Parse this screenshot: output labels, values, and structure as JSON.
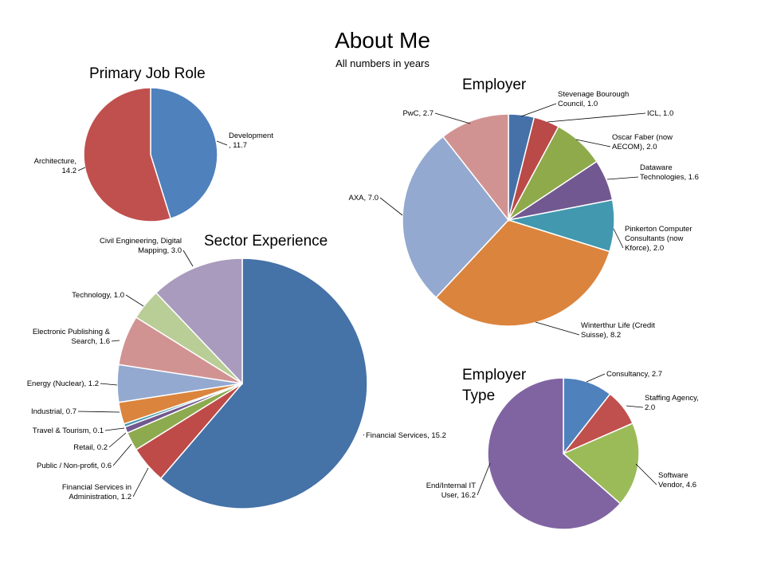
{
  "page": {
    "title": "About Me",
    "subtitle": "All numbers in years"
  },
  "chart_data": [
    {
      "type": "pie",
      "title": "Primary Job Role",
      "series": [
        {
          "label": "Development",
          "value": 11.7,
          "color": "#4F81BD",
          "label_lines": [
            "Development",
            ", 11.7"
          ]
        },
        {
          "label": "Architecture",
          "value": 14.2,
          "color": "#C0504D",
          "label_lines": [
            "Architecture,",
            "14.2"
          ]
        }
      ]
    },
    {
      "type": "pie",
      "title": "Employer",
      "series": [
        {
          "label": "Stevenage Bourough Council",
          "value": 1.0,
          "color": "#4670A8",
          "label_lines": [
            "Stevenage Bourough",
            "Council, 1.0"
          ]
        },
        {
          "label": "ICL",
          "value": 1.0,
          "color": "#B94A48",
          "label_lines": [
            "ICL, 1.0"
          ]
        },
        {
          "label": "Oscar Faber (now AECOM)",
          "value": 2.0,
          "color": "#8FAA4B",
          "label_lines": [
            "Oscar Faber (now",
            "AECOM), 2.0"
          ]
        },
        {
          "label": "Dataware Technologies",
          "value": 1.6,
          "color": "#725890",
          "label_lines": [
            "Dataware",
            "Technologies, 1.6"
          ]
        },
        {
          "label": "Pinkerton Computer Consultants (now Kforce)",
          "value": 2.0,
          "color": "#4198AF",
          "label_lines": [
            "Pinkerton Computer",
            "Consultants (now",
            "Kforce), 2.0"
          ]
        },
        {
          "label": "Winterthur Life (Credit Suisse)",
          "value": 8.2,
          "color": "#DB843D",
          "label_lines": [
            "Winterthur Life (Credit",
            "Suisse), 8.2"
          ]
        },
        {
          "label": "AXA",
          "value": 7.0,
          "color": "#93A9CF",
          "label_lines": [
            "AXA, 7.0"
          ]
        },
        {
          "label": "PwC",
          "value": 2.7,
          "color": "#D19392",
          "label_lines": [
            "PwC, 2.7"
          ]
        }
      ]
    },
    {
      "type": "pie",
      "title": "Sector Experience",
      "series": [
        {
          "label": "Financial Services",
          "value": 15.2,
          "color": "#4572A7",
          "label_lines": [
            "Financial Services, 15.2"
          ]
        },
        {
          "label": "Financial Services in Administration",
          "value": 1.2,
          "color": "#BE4B48",
          "label_lines": [
            "Financial Services in",
            "Administration, 1.2"
          ]
        },
        {
          "label": "Public / Non-profit",
          "value": 0.6,
          "color": "#8DAA4F",
          "label_lines": [
            "Public / Non-profit, 0.6"
          ]
        },
        {
          "label": "Retail",
          "value": 0.2,
          "color": "#71588F",
          "label_lines": [
            "Retail, 0.2"
          ]
        },
        {
          "label": "Travel & Tourism",
          "value": 0.1,
          "color": "#4198AF",
          "label_lines": [
            "Travel & Tourism, 0.1"
          ]
        },
        {
          "label": "Industrial",
          "value": 0.7,
          "color": "#DB843D",
          "label_lines": [
            "Industrial, 0.7"
          ]
        },
        {
          "label": "Energy (Nuclear)",
          "value": 1.2,
          "color": "#93A9CF",
          "label_lines": [
            "Energy (Nuclear), 1.2"
          ]
        },
        {
          "label": "Electronic Publishing & Search",
          "value": 1.6,
          "color": "#D19392",
          "label_lines": [
            "Electronic Publishing &",
            "Search, 1.6"
          ]
        },
        {
          "label": "Technology",
          "value": 1.0,
          "color": "#B9CD96",
          "label_lines": [
            "Technology, 1.0"
          ]
        },
        {
          "label": "Civil Engineering, Digital Mapping",
          "value": 3.0,
          "color": "#A99BBD",
          "label_lines": [
            "Civil Engineering, Digital",
            "Mapping, 3.0"
          ]
        }
      ]
    },
    {
      "type": "pie",
      "title": "Employer Type",
      "title_lines": [
        "Employer",
        "Type"
      ],
      "series": [
        {
          "label": "Consultancy",
          "value": 2.7,
          "color": "#4F81BD",
          "label_lines": [
            "Consultancy, 2.7"
          ]
        },
        {
          "label": "Staffing Agency",
          "value": 2.0,
          "color": "#C0504D",
          "label_lines": [
            "Staffing Agency,",
            "2.0"
          ]
        },
        {
          "label": "Software Vendor",
          "value": 4.6,
          "color": "#9BBB59",
          "label_lines": [
            "Software",
            "Vendor, 4.6"
          ]
        },
        {
          "label": "End/Internal IT User",
          "value": 16.2,
          "color": "#8064A2",
          "label_lines": [
            "End/Internal IT",
            "User, 16.2"
          ]
        }
      ]
    }
  ]
}
